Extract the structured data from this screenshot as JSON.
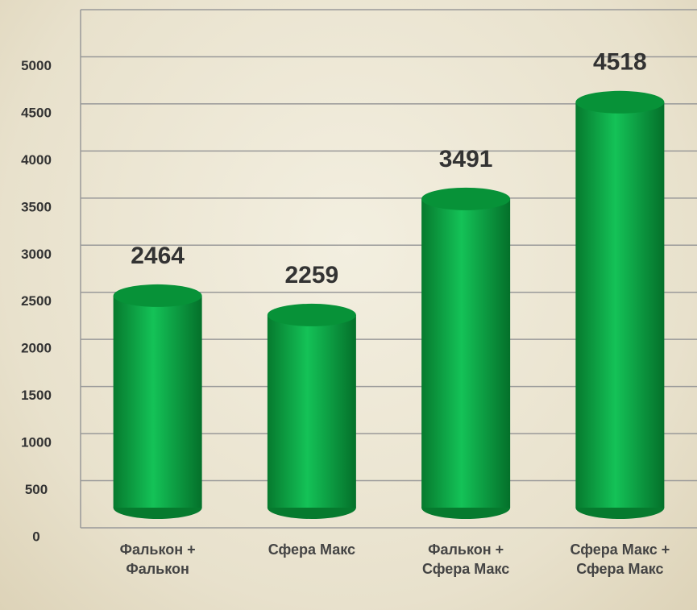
{
  "chart_data": {
    "type": "bar",
    "categories": [
      "Фалькон + Фалькон",
      "Сфера Макс",
      "Фалькон + Сфера Макс",
      "Сфера Макс + Сфера Макс"
    ],
    "values": [
      2464,
      2259,
      3491,
      4518
    ],
    "color": "#0fa84a",
    "ylim": [
      0,
      5500
    ],
    "yticks": [
      0,
      500,
      1000,
      1500,
      2000,
      2500,
      3000,
      3500,
      4000,
      4500,
      5000
    ],
    "grid": true
  }
}
